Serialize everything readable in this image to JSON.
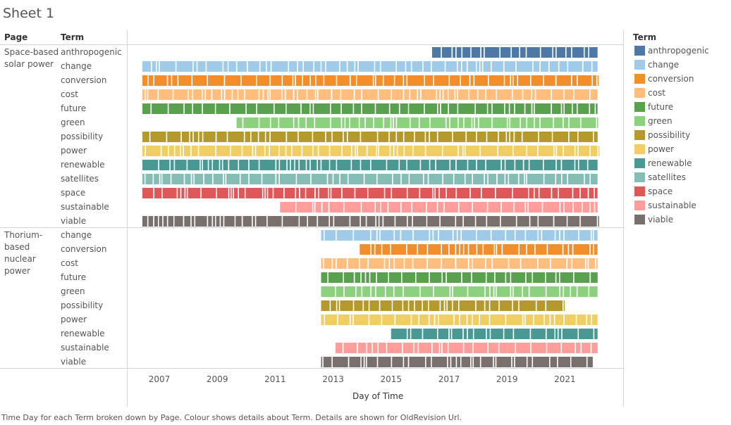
{
  "title": "Sheet 1",
  "header": {
    "page": "Page",
    "term": "Term"
  },
  "legend": {
    "title": "Term",
    "items": [
      {
        "label": "anthropogenic",
        "color": "#4e79a7"
      },
      {
        "label": "change",
        "color": "#a0cbe8"
      },
      {
        "label": "conversion",
        "color": "#f28e2b"
      },
      {
        "label": "cost",
        "color": "#ffbe7d"
      },
      {
        "label": "future",
        "color": "#59a14f"
      },
      {
        "label": "green",
        "color": "#8cd17d"
      },
      {
        "label": "possibility",
        "color": "#b6992d"
      },
      {
        "label": "power",
        "color": "#f1ce63"
      },
      {
        "label": "renewable",
        "color": "#499894"
      },
      {
        "label": "satellites",
        "color": "#86bcb6"
      },
      {
        "label": "space",
        "color": "#e15759"
      },
      {
        "label": "sustainable",
        "color": "#ff9d9a"
      },
      {
        "label": "viable",
        "color": "#79706e"
      }
    ]
  },
  "x_axis": {
    "title": "Day of Time",
    "ticks": [
      "2007",
      "2009",
      "2011",
      "2013",
      "2015",
      "2017",
      "2019",
      "2021"
    ]
  },
  "caption": "Time Day for each Term broken down by Page.  Colour shows details about Term.  Details are shown for OldRevision Url.",
  "chart_data": {
    "type": "gantt",
    "title": "Sheet 1",
    "xlabel": "Day of Time",
    "x_ticks": [
      "2007",
      "2009",
      "2011",
      "2013",
      "2015",
      "2017",
      "2019",
      "2021"
    ],
    "xlim": [
      "2006-01-01",
      "2022-12-31"
    ],
    "panels": [
      {
        "page": "Space-based solar power",
        "terms": [
          {
            "term": "anthropogenic",
            "start": "2016-06",
            "end": "2022-03"
          },
          {
            "term": "change",
            "start": "2006-06",
            "end": "2022-03"
          },
          {
            "term": "conversion",
            "start": "2006-06",
            "end": "2022-03"
          },
          {
            "term": "cost",
            "start": "2006-06",
            "end": "2022-03"
          },
          {
            "term": "future",
            "start": "2006-06",
            "end": "2022-03"
          },
          {
            "term": "green",
            "start": "2009-09",
            "end": "2022-03"
          },
          {
            "term": "possibility",
            "start": "2006-06",
            "end": "2022-03"
          },
          {
            "term": "power",
            "start": "2006-06",
            "end": "2022-03"
          },
          {
            "term": "renewable",
            "start": "2006-06",
            "end": "2022-03"
          },
          {
            "term": "satellites",
            "start": "2006-06",
            "end": "2022-03"
          },
          {
            "term": "space",
            "start": "2006-06",
            "end": "2022-03"
          },
          {
            "term": "sustainable",
            "start": "2011-03",
            "end": "2022-03"
          },
          {
            "term": "viable",
            "start": "2006-06",
            "end": "2022-03"
          }
        ]
      },
      {
        "page": "Thorium-based nuclear power",
        "terms": [
          {
            "term": "change",
            "start": "2012-08",
            "end": "2022-03"
          },
          {
            "term": "conversion",
            "start": "2013-12",
            "end": "2022-03"
          },
          {
            "term": "cost",
            "start": "2012-08",
            "end": "2022-03"
          },
          {
            "term": "future",
            "start": "2012-08",
            "end": "2022-03"
          },
          {
            "term": "green",
            "start": "2012-08",
            "end": "2022-03"
          },
          {
            "term": "possibility",
            "start": "2012-08",
            "end": "2021-01"
          },
          {
            "term": "power",
            "start": "2012-08",
            "end": "2022-03"
          },
          {
            "term": "renewable",
            "start": "2015-01",
            "end": "2022-03"
          },
          {
            "term": "sustainable",
            "start": "2013-02",
            "end": "2022-03"
          },
          {
            "term": "viable",
            "start": "2012-08",
            "end": "2022-01"
          }
        ]
      }
    ]
  }
}
